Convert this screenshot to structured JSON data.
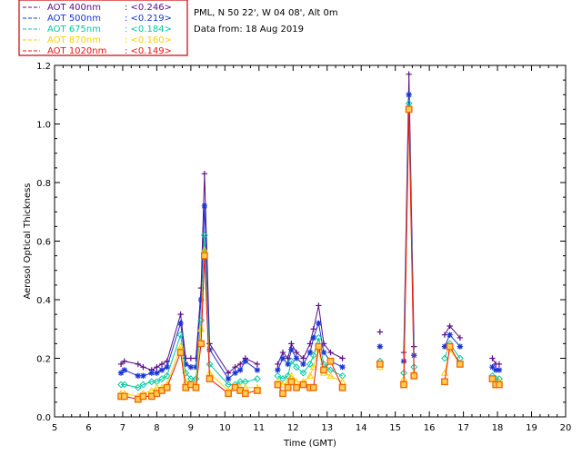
{
  "chart_data": {
    "type": "line",
    "title": "PML, N 50 22', W 04 08', Alt 0m",
    "subtitle": "Data from: 18 Aug 2019",
    "xlabel": "Time (GMT)",
    "ylabel": "Aerosol Optical Thickness",
    "xlim": [
      5,
      20
    ],
    "ylim": [
      0,
      1.2
    ],
    "xticks": [
      "5",
      "6",
      "7",
      "8",
      "9",
      "10",
      "11",
      "12",
      "13",
      "14",
      "15",
      "16",
      "17",
      "18",
      "19",
      "20"
    ],
    "yticks": [
      "0.0",
      "0.2",
      "0.4",
      "0.6",
      "0.8",
      "1.0",
      "1.2"
    ],
    "x": [
      6.95,
      7.05,
      7.45,
      7.6,
      7.85,
      8.0,
      8.15,
      8.3,
      8.7,
      8.85,
      9.0,
      9.15,
      9.3,
      9.4,
      9.55,
      10.1,
      10.3,
      10.45,
      10.6,
      10.95,
      11.55,
      11.7,
      11.85,
      11.95,
      12.1,
      12.3,
      12.5,
      12.6,
      12.75,
      12.9,
      13.1,
      13.45,
      14.55,
      15.25,
      15.4,
      15.55,
      16.45,
      16.6,
      16.9,
      17.85,
      17.95,
      18.05
    ],
    "series": [
      {
        "name": "AOT 400nm",
        "avg": "<0.246>",
        "color": "#5a0f84",
        "marker": "plus",
        "values": [
          0.18,
          0.19,
          0.18,
          0.17,
          0.16,
          0.17,
          0.18,
          0.19,
          0.35,
          0.2,
          0.2,
          0.2,
          0.44,
          0.83,
          0.25,
          0.15,
          0.17,
          0.18,
          0.2,
          0.18,
          0.18,
          0.22,
          0.2,
          0.25,
          0.22,
          0.2,
          0.25,
          0.3,
          0.38,
          0.25,
          0.22,
          0.2,
          0.29,
          0.22,
          1.17,
          0.24,
          0.28,
          0.31,
          0.27,
          0.2,
          0.18,
          0.18
        ]
      },
      {
        "name": "AOT 500nm",
        "avg": "<0.219>",
        "color": "#1a34d6",
        "marker": "asterisk",
        "values": [
          0.15,
          0.16,
          0.14,
          0.14,
          0.15,
          0.15,
          0.16,
          0.17,
          0.32,
          0.18,
          0.17,
          0.17,
          0.4,
          0.72,
          0.23,
          0.13,
          0.15,
          0.16,
          0.19,
          0.16,
          0.16,
          0.2,
          0.18,
          0.23,
          0.2,
          0.18,
          0.22,
          0.27,
          0.32,
          0.22,
          0.19,
          0.17,
          0.24,
          0.19,
          1.1,
          0.21,
          0.24,
          0.28,
          0.24,
          0.17,
          0.16,
          0.16
        ]
      },
      {
        "name": "AOT 675nm",
        "avg": "<0.184>",
        "color": "#00c9a0",
        "marker": "diamond",
        "values": [
          0.11,
          0.11,
          0.1,
          0.11,
          0.12,
          0.12,
          0.13,
          0.14,
          0.28,
          0.15,
          0.13,
          0.13,
          0.33,
          0.62,
          0.18,
          0.11,
          0.11,
          0.12,
          0.12,
          0.13,
          0.14,
          0.13,
          0.14,
          0.19,
          0.17,
          0.15,
          0.18,
          0.21,
          0.27,
          0.18,
          0.16,
          0.14,
          0.19,
          0.15,
          1.07,
          0.17,
          0.2,
          0.25,
          0.2,
          0.14,
          0.13,
          0.13
        ]
      },
      {
        "name": "AOT 870nm",
        "avg": "<0.160>",
        "color": "#ffd000",
        "marker": "triangle",
        "values": [
          0.08,
          0.08,
          0.07,
          0.08,
          0.09,
          0.1,
          0.1,
          0.11,
          0.24,
          0.12,
          0.11,
          0.11,
          0.3,
          0.57,
          0.15,
          0.09,
          0.1,
          0.1,
          0.1,
          0.1,
          0.12,
          0.11,
          0.12,
          0.14,
          0.12,
          0.12,
          0.14,
          0.17,
          0.23,
          0.15,
          0.14,
          0.12,
          0.17,
          0.13,
          1.05,
          0.15,
          0.15,
          0.23,
          0.18,
          0.13,
          0.11,
          0.12
        ]
      },
      {
        "name": "AOT 1020nm",
        "avg": "<0.149>",
        "color": "#ee1111",
        "marker": "square",
        "markerColor": "#ee6600",
        "values": [
          0.07,
          0.07,
          0.06,
          0.07,
          0.07,
          0.08,
          0.09,
          0.1,
          0.22,
          0.1,
          0.11,
          0.1,
          0.25,
          0.55,
          0.13,
          0.08,
          0.1,
          0.09,
          0.08,
          0.09,
          0.11,
          0.08,
          0.1,
          0.12,
          0.1,
          0.11,
          0.1,
          0.1,
          0.24,
          0.16,
          0.19,
          0.1,
          0.18,
          0.11,
          1.05,
          0.14,
          0.12,
          0.24,
          0.18,
          0.13,
          0.11,
          0.11
        ]
      }
    ]
  }
}
